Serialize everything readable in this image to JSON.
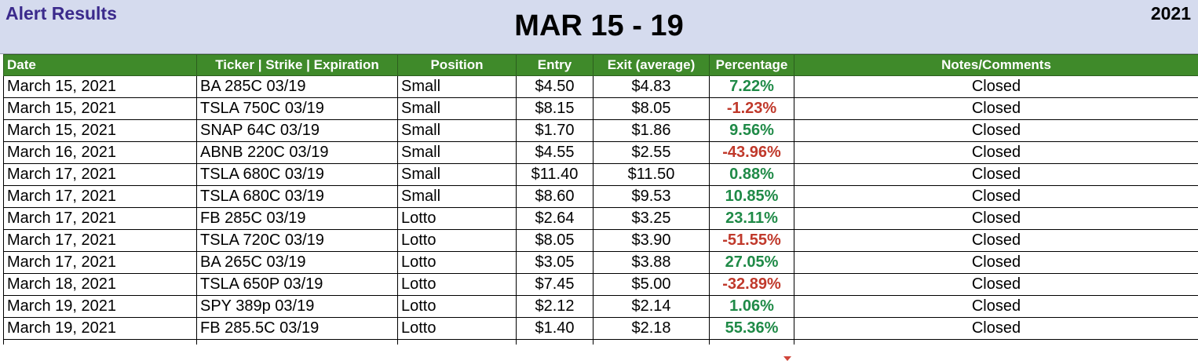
{
  "banner": {
    "left_title": "Alert Results",
    "center_title": "MAR 15 - 19",
    "year": "2021"
  },
  "table": {
    "headers": [
      "Date",
      "Ticker | Strike | Expiration",
      "Position",
      "Entry",
      "Exit (average)",
      "Percentage",
      "Notes/Comments"
    ],
    "rows": [
      {
        "date": "March 15, 2021",
        "ticker": "BA 285C 03/19",
        "position": "Small",
        "entry": "$4.50",
        "exit": "$4.83",
        "pct": "7.22%",
        "notes": "Closed"
      },
      {
        "date": "March 15, 2021",
        "ticker": "TSLA 750C 03/19",
        "position": "Small",
        "entry": "$8.15",
        "exit": "$8.05",
        "pct": "-1.23%",
        "notes": "Closed"
      },
      {
        "date": "March 15, 2021",
        "ticker": "SNAP 64C 03/19",
        "position": "Small",
        "entry": "$1.70",
        "exit": "$1.86",
        "pct": "9.56%",
        "notes": "Closed"
      },
      {
        "date": "March 16, 2021",
        "ticker": "ABNB 220C 03/19",
        "position": "Small",
        "entry": "$4.55",
        "exit": "$2.55",
        "pct": "-43.96%",
        "notes": "Closed"
      },
      {
        "date": "March 17, 2021",
        "ticker": "TSLA 680C 03/19",
        "position": "Small",
        "entry": "$11.40",
        "exit": "$11.50",
        "pct": "0.88%",
        "notes": "Closed"
      },
      {
        "date": "March 17, 2021",
        "ticker": "TSLA 680C 03/19",
        "position": "Small",
        "entry": "$8.60",
        "exit": "$9.53",
        "pct": "10.85%",
        "notes": "Closed"
      },
      {
        "date": "March 17, 2021",
        "ticker": "FB 285C 03/19",
        "position": "Lotto",
        "entry": "$2.64",
        "exit": "$3.25",
        "pct": "23.11%",
        "notes": "Closed"
      },
      {
        "date": "March 17, 2021",
        "ticker": "TSLA 720C 03/19",
        "position": "Lotto",
        "entry": "$8.05",
        "exit": "$3.90",
        "pct": "-51.55%",
        "notes": "Closed"
      },
      {
        "date": "March 17, 2021",
        "ticker": "BA 265C 03/19",
        "position": "Lotto",
        "entry": "$3.05",
        "exit": "$3.88",
        "pct": "27.05%",
        "notes": "Closed"
      },
      {
        "date": "March 18, 2021",
        "ticker": "TSLA 650P 03/19",
        "position": "Lotto",
        "entry": "$7.45",
        "exit": "$5.00",
        "pct": "-32.89%",
        "notes": "Closed"
      },
      {
        "date": "March 19, 2021",
        "ticker": "SPY 389p 03/19",
        "position": "Lotto",
        "entry": "$2.12",
        "exit": "$2.14",
        "pct": "1.06%",
        "notes": "Closed"
      },
      {
        "date": "March 19, 2021",
        "ticker": "FB 285.5C 03/19",
        "position": "Lotto",
        "entry": "$1.40",
        "exit": "$2.18",
        "pct": "55.36%",
        "notes": "Closed"
      }
    ]
  },
  "colors": {
    "header_bg": "#3f8a2a",
    "banner_bg": "#d5dbee",
    "positive": "#1f8a47",
    "negative": "#c0392b",
    "title_purple": "#3b2a8c"
  }
}
